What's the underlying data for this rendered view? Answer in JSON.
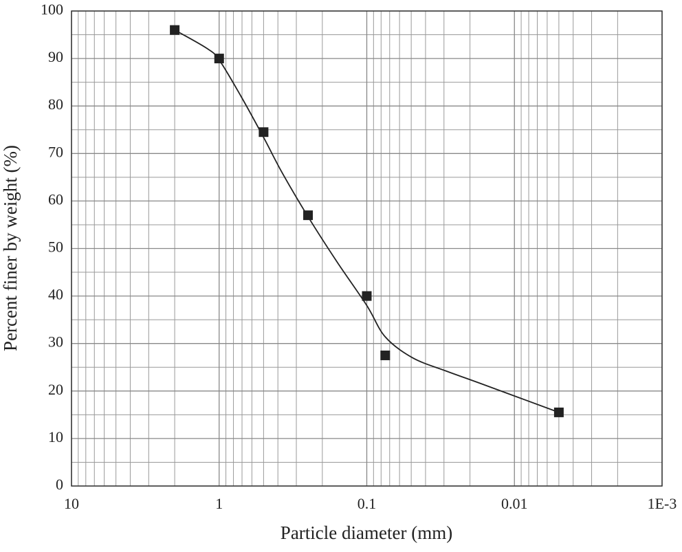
{
  "chart_data": {
    "type": "scatter",
    "x_label": "Particle diameter (mm)",
    "y_label": "Percent finer by weight (%)",
    "log_x": true,
    "grid": true,
    "minor_grid": true,
    "xlim": [
      10,
      0.001
    ],
    "xticks": [
      10,
      1,
      0.1,
      0.01,
      {
        "value": 0.001,
        "label": "1E-3"
      }
    ],
    "ylim": [
      0,
      100
    ],
    "yticks": [
      0,
      10,
      20,
      30,
      40,
      50,
      60,
      70,
      80,
      90,
      100
    ],
    "series": [
      {
        "marker": "square",
        "color": "#222222",
        "x": [
          2,
          1,
          0.5,
          0.25,
          0.1,
          0.075,
          0.005
        ],
        "values": [
          96,
          90,
          74.5,
          57,
          40,
          27.5,
          15.5
        ]
      },
      {
        "line": "smooth",
        "color": "#222222",
        "x": [
          2,
          1.22,
          1,
          0.71,
          0.5,
          0.375,
          0.25,
          0.16,
          0.1,
          0.075,
          0.049,
          0.029,
          0.017,
          0.005
        ],
        "values": [
          96,
          92.2,
          89.7,
          82,
          73.4,
          66,
          56.7,
          47.3,
          38,
          31.4,
          27,
          24.2,
          21.6,
          15.5
        ]
      }
    ]
  }
}
